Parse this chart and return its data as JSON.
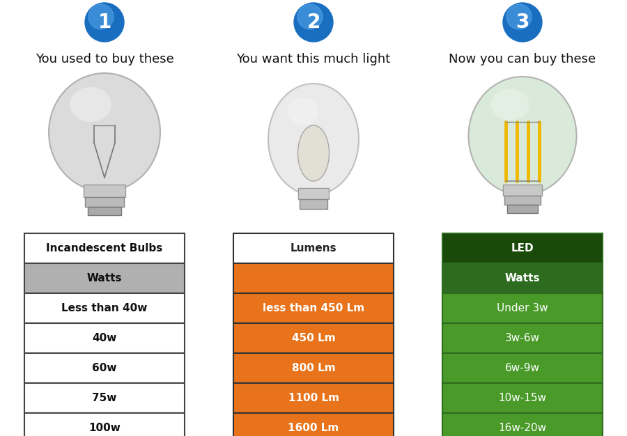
{
  "background_color": "#ffffff",
  "col1_header": "Incandescent Bulbs",
  "col1_subheader": "Watts",
  "col1_subheader_bg": "#b0b0b0",
  "col1_rows": [
    "Less than 40w",
    "40w",
    "60w",
    "75w",
    "100w"
  ],
  "col1_row_bg": "#ffffff",
  "col1_border": "#444444",
  "col2_header": "Lumens",
  "col2_header_bg": "#ffffff",
  "col2_header_text": "#222222",
  "col2_empty_row_bg": "#e8731a",
  "col2_rows": [
    "less than 450 Lm",
    "450 Lm",
    "800 Lm",
    "1100 Lm",
    "1600 Lm"
  ],
  "col2_row_bg": "#e8731a",
  "col2_border": "#333333",
  "col3_header": "LED",
  "col3_subheader": "Watts",
  "col3_subheader_bg": "#2d6b1e",
  "col3_rows": [
    "Under 3w",
    "3w-6w",
    "6w-9w",
    "10w-15w",
    "16w-20w"
  ],
  "col3_header_bg": "#1a4a0a",
  "col3_row_bg": "#4a9a2a",
  "col3_border": "#2d6b1e",
  "title1": "You used to buy these",
  "title2": "You want this much light",
  "title3": "Now you can buy these",
  "circle_color_top": "#4da6e8",
  "circle_color_bottom": "#1a5fb0",
  "circle_text_color": "#ffffff",
  "title_fontsize": 13,
  "header_fontsize": 11,
  "row_fontsize": 11,
  "text_color_dark": "#111111",
  "text_color_light": "#ffffff"
}
